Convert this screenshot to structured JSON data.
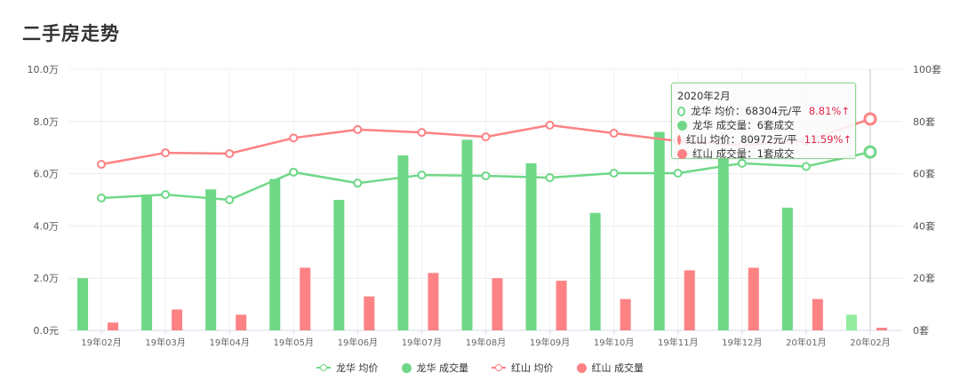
{
  "title": "二手房走势",
  "colors": {
    "longhua": "#6fd887",
    "longhua_highlight": "#93ec9f",
    "hongshan": "#fd8284",
    "grid": "#ececec",
    "change_up": "#e0244b"
  },
  "chart_data": {
    "type": "bar+line",
    "title": "二手房走势",
    "categories": [
      "19年02月",
      "19年03月",
      "19年04月",
      "19年05月",
      "19年06月",
      "19年07月",
      "19年08月",
      "19年09月",
      "19年10月",
      "19年11月",
      "19年12月",
      "20年01月",
      "20年02月"
    ],
    "left_axis": {
      "label": "均价",
      "ticks": [
        "0.0元",
        "2.0万",
        "4.0万",
        "6.0万",
        "8.0万",
        "10.0万"
      ],
      "range": [
        0,
        100000
      ]
    },
    "right_axis": {
      "label": "成交量",
      "ticks": [
        "0套",
        "20套",
        "40套",
        "60套",
        "80套",
        "100套"
      ],
      "range": [
        0,
        100
      ]
    },
    "series": [
      {
        "name": "龙华 均价",
        "type": "line",
        "axis": "left",
        "color": "#6fd887",
        "values": [
          50700,
          52000,
          50000,
          60600,
          56400,
          59500,
          59200,
          58500,
          60200,
          60200,
          64000,
          62774,
          68304
        ]
      },
      {
        "name": "龙华 成交量",
        "type": "bar",
        "axis": "right",
        "color": "#6fd887",
        "values": [
          20,
          52,
          54,
          58,
          50,
          67,
          73,
          64,
          45,
          76,
          66,
          47,
          6
        ]
      },
      {
        "name": "红山 均价",
        "type": "line",
        "axis": "left",
        "color": "#fd8284",
        "values": [
          63600,
          68000,
          67700,
          73700,
          76900,
          75800,
          74100,
          78600,
          75500,
          72500,
          71000,
          72562,
          80972
        ]
      },
      {
        "name": "红山 成交量",
        "type": "bar",
        "axis": "right",
        "color": "#fd8284",
        "values": [
          3,
          8,
          6,
          24,
          13,
          22,
          20,
          19,
          12,
          23,
          24,
          12,
          1
        ]
      }
    ],
    "legend": [
      "龙华 均价",
      "龙华 成交量",
      "红山 均价",
      "红山 成交量"
    ],
    "legend_position": "bottom",
    "grid": true,
    "hover_index": 12
  },
  "tooltip": {
    "title": "2020年2月",
    "rows": [
      {
        "label": "龙华 均价：68304元/平",
        "change": "8.81%↑"
      },
      {
        "label": "龙华 成交量：6套成交"
      },
      {
        "label": "红山 均价：80972元/平",
        "change": "11.59%↑"
      },
      {
        "label": "红山 成交量：1套成交"
      }
    ]
  }
}
